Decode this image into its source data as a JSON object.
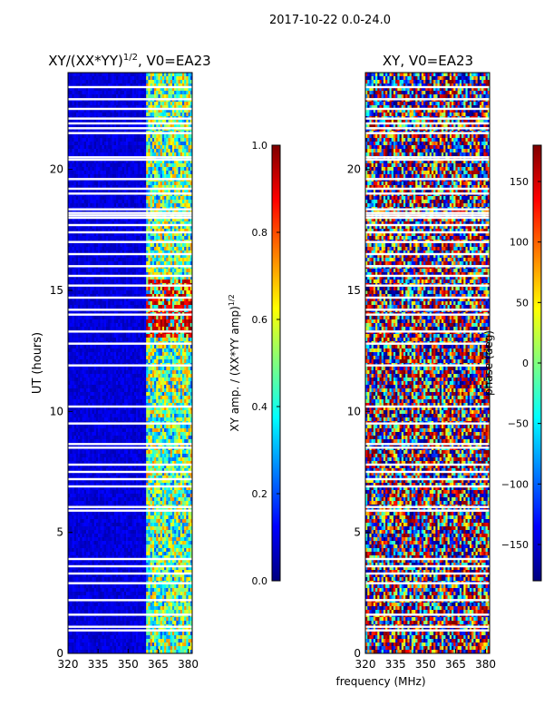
{
  "suptitle": "2017-10-22 0.0-24.0",
  "xlabel": "frequency (MHz)",
  "colors": {
    "jet": [
      "#00007f",
      "#0000ff",
      "#007fff",
      "#00ffff",
      "#7fff7f",
      "#ffff00",
      "#ff7f00",
      "#ff0000",
      "#7f0000"
    ],
    "gap": "#ffffff"
  },
  "chart_data": [
    {
      "type": "heatmap",
      "title_main": "XY/(XX*YY)",
      "title_sup": "1/2",
      "title_tail": ", V0=EA23",
      "xlabel": "",
      "ylabel": "UT (hours)",
      "xlim": [
        320,
        382
      ],
      "ylim": [
        0,
        24
      ],
      "xticks": [
        320,
        335,
        350,
        365,
        380
      ],
      "yticks": [
        0,
        5,
        10,
        15,
        20
      ],
      "bright_band_mhz": [
        359,
        382
      ],
      "background_value": 0.05,
      "band_value": 0.45,
      "colorbar": {
        "label_main": "XY amp. / (XX*YY amp)",
        "label_sup": "1/2",
        "vmin": 0.0,
        "vmax": 1.0,
        "ticks": [
          "1.0",
          "0.8",
          "0.6",
          "0.4",
          "0.2",
          "0.0"
        ],
        "tick_values": [
          1.0,
          0.8,
          0.6,
          0.4,
          0.2,
          0.0
        ]
      }
    },
    {
      "type": "heatmap",
      "title_main": "XY, V0=EA23",
      "title_sup": "",
      "title_tail": "",
      "xlabel": "frequency (MHz)",
      "ylabel": "",
      "xlim": [
        320,
        382
      ],
      "ylim": [
        0,
        24
      ],
      "xticks": [
        320,
        335,
        350,
        365,
        380
      ],
      "yticks": [
        0,
        5,
        10,
        15,
        20
      ],
      "colorbar": {
        "label_main": "phase (deg)",
        "label_sup": "",
        "vmin": -180,
        "vmax": 180,
        "ticks": [
          "150",
          "100",
          "50",
          "0",
          "−50",
          "−100",
          "−150"
        ],
        "tick_values": [
          150,
          100,
          50,
          0,
          -50,
          -100,
          -150
        ]
      }
    }
  ],
  "flagged_hours": [
    0.95,
    1.1,
    1.6,
    2.2,
    2.9,
    3.3,
    3.6,
    3.9,
    5.9,
    6.05,
    6.9,
    7.2,
    7.5,
    7.8,
    8.5,
    8.65,
    9.5,
    10.2,
    11.9,
    12.8,
    13.3,
    14.0,
    14.2,
    14.7,
    15.2,
    15.6,
    16.0,
    16.5,
    17.0,
    17.4,
    17.7,
    18.0,
    18.1,
    18.2,
    18.35,
    19.0,
    19.2,
    19.6,
    20.4,
    20.5,
    21.5,
    21.7,
    21.9,
    22.1,
    22.5,
    22.9,
    23.4
  ]
}
